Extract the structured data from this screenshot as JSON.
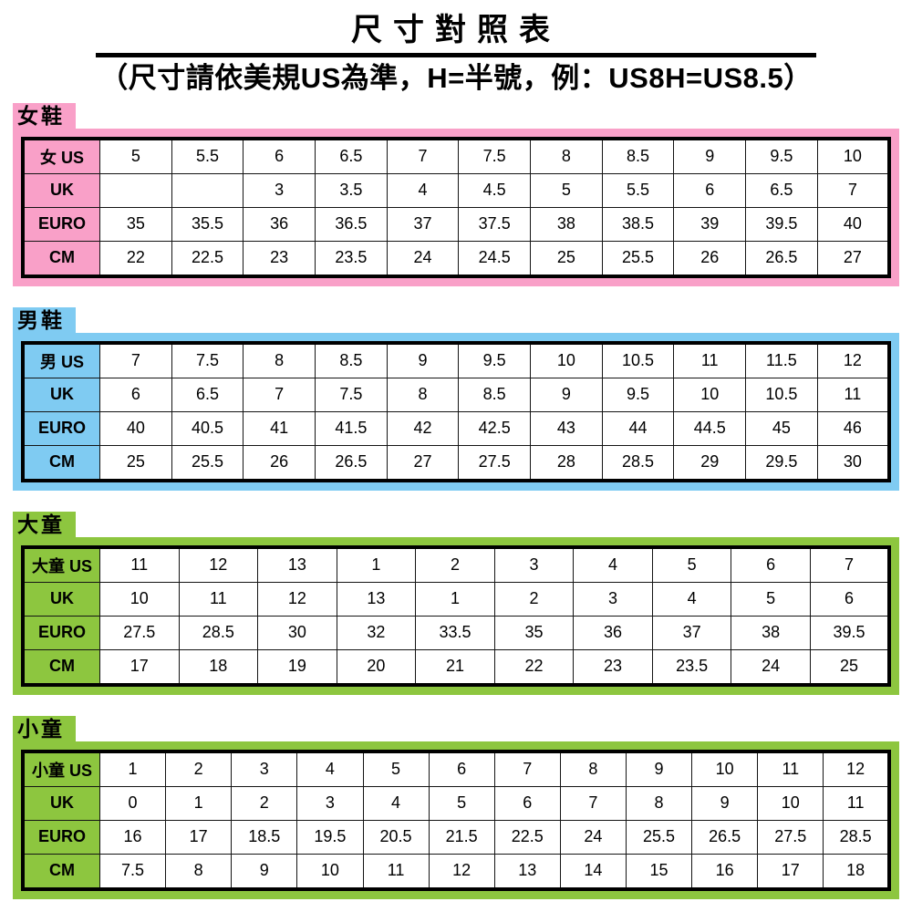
{
  "header": {
    "title": "尺寸對照表",
    "subtitle": "（尺寸請依美規US為準，H=半號，例：US8H=US8.5）"
  },
  "colors": {
    "pink": "#F9A0C8",
    "blue": "#7FCBF2",
    "green": "#8DC63F"
  },
  "tables": [
    {
      "label": "女鞋",
      "color": "pink",
      "rows": [
        {
          "header": "女 US",
          "cells": [
            "5",
            "5.5",
            "6",
            "6.5",
            "7",
            "7.5",
            "8",
            "8.5",
            "9",
            "9.5",
            "10"
          ]
        },
        {
          "header": "UK",
          "cells": [
            "",
            "",
            "3",
            "3.5",
            "4",
            "4.5",
            "5",
            "5.5",
            "6",
            "6.5",
            "7"
          ]
        },
        {
          "header": "EURO",
          "cells": [
            "35",
            "35.5",
            "36",
            "36.5",
            "37",
            "37.5",
            "38",
            "38.5",
            "39",
            "39.5",
            "40"
          ]
        },
        {
          "header": "CM",
          "cells": [
            "22",
            "22.5",
            "23",
            "23.5",
            "24",
            "24.5",
            "25",
            "25.5",
            "26",
            "26.5",
            "27"
          ]
        }
      ]
    },
    {
      "label": "男鞋",
      "color": "blue",
      "rows": [
        {
          "header": "男 US",
          "cells": [
            "7",
            "7.5",
            "8",
            "8.5",
            "9",
            "9.5",
            "10",
            "10.5",
            "11",
            "11.5",
            "12"
          ]
        },
        {
          "header": "UK",
          "cells": [
            "6",
            "6.5",
            "7",
            "7.5",
            "8",
            "8.5",
            "9",
            "9.5",
            "10",
            "10.5",
            "11"
          ]
        },
        {
          "header": "EURO",
          "cells": [
            "40",
            "40.5",
            "41",
            "41.5",
            "42",
            "42.5",
            "43",
            "44",
            "44.5",
            "45",
            "46"
          ]
        },
        {
          "header": "CM",
          "cells": [
            "25",
            "25.5",
            "26",
            "26.5",
            "27",
            "27.5",
            "28",
            "28.5",
            "29",
            "29.5",
            "30"
          ]
        }
      ]
    },
    {
      "label": "大童",
      "color": "green",
      "rows": [
        {
          "header": "大童 US",
          "cells": [
            "11",
            "12",
            "13",
            "1",
            "2",
            "3",
            "4",
            "5",
            "6",
            "7"
          ]
        },
        {
          "header": "UK",
          "cells": [
            "10",
            "11",
            "12",
            "13",
            "1",
            "2",
            "3",
            "4",
            "5",
            "6"
          ]
        },
        {
          "header": "EURO",
          "cells": [
            "27.5",
            "28.5",
            "30",
            "32",
            "33.5",
            "35",
            "36",
            "37",
            "38",
            "39.5"
          ]
        },
        {
          "header": "CM",
          "cells": [
            "17",
            "18",
            "19",
            "20",
            "21",
            "22",
            "23",
            "23.5",
            "24",
            "25"
          ]
        }
      ]
    },
    {
      "label": "小童",
      "color": "green",
      "rows": [
        {
          "header": "小童 US",
          "cells": [
            "1",
            "2",
            "3",
            "4",
            "5",
            "6",
            "7",
            "8",
            "9",
            "10",
            "11",
            "12"
          ]
        },
        {
          "header": "UK",
          "cells": [
            "0",
            "1",
            "2",
            "3",
            "4",
            "5",
            "6",
            "7",
            "8",
            "9",
            "10",
            "11"
          ]
        },
        {
          "header": "EURO",
          "cells": [
            "16",
            "17",
            "18.5",
            "19.5",
            "20.5",
            "21.5",
            "22.5",
            "24",
            "25.5",
            "26.5",
            "27.5",
            "28.5"
          ]
        },
        {
          "header": "CM",
          "cells": [
            "7.5",
            "8",
            "9",
            "10",
            "11",
            "12",
            "13",
            "14",
            "15",
            "16",
            "17",
            "18"
          ]
        }
      ]
    }
  ]
}
